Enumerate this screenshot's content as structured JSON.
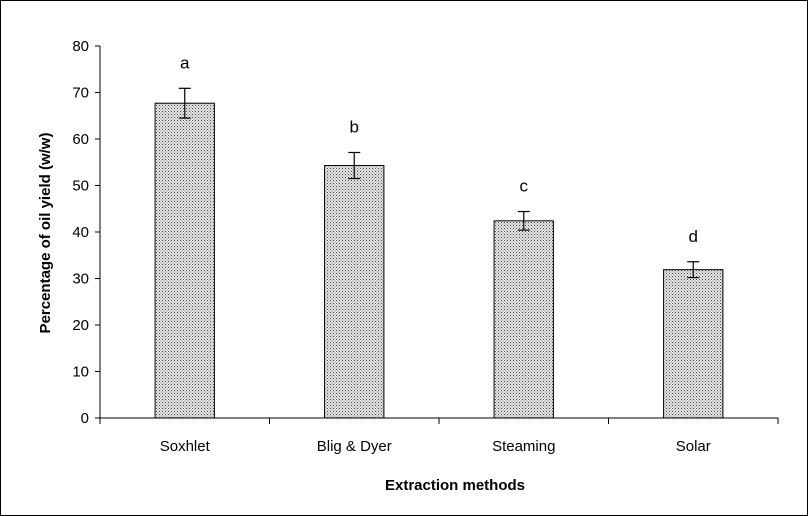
{
  "chart_data": {
    "type": "bar",
    "categories": [
      "Soxhlet",
      "Blig & Dyer",
      "Steaming",
      "Solar"
    ],
    "values": [
      67.7,
      54.3,
      42.4,
      31.9
    ],
    "errors": [
      3.2,
      2.8,
      2.0,
      1.7
    ],
    "significance_letters": [
      "a",
      "b",
      "c",
      "d"
    ],
    "xlabel": "Extraction methods",
    "ylabel": "Percentage of oil yield (w/w)",
    "ylim": [
      0,
      80
    ],
    "yticks": [
      0,
      10,
      20,
      30,
      40,
      50,
      60,
      70,
      80
    ],
    "grid": false,
    "legend": "none",
    "bar_pattern": "dotted gray fill"
  }
}
